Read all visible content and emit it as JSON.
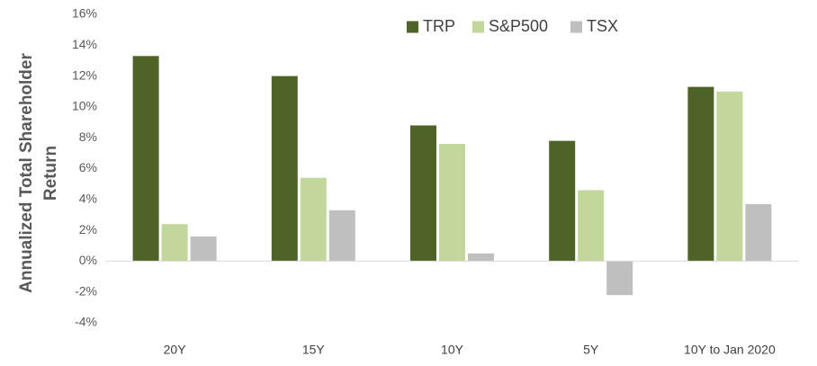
{
  "chart_data": {
    "type": "bar",
    "title": "",
    "ylabel": [
      "Annualized Total Shareholder",
      "Return"
    ],
    "xlabel": "",
    "categories": [
      "20Y",
      "15Y",
      "10Y",
      "5Y",
      "10Y to Jan 2020"
    ],
    "series": [
      {
        "name": "TRP",
        "color": "#4f6228",
        "values": [
          13.3,
          12.0,
          8.8,
          7.8,
          11.3
        ]
      },
      {
        "name": "S&P500",
        "color": "#c3d69b",
        "values": [
          2.4,
          5.4,
          7.6,
          4.6,
          11.0
        ]
      },
      {
        "name": "TSX",
        "color": "#bfbfbf",
        "values": [
          1.6,
          3.3,
          0.5,
          -2.2,
          3.7
        ]
      }
    ],
    "ylim": [
      -4,
      16
    ],
    "yticks": [
      -4,
      -2,
      0,
      2,
      4,
      6,
      8,
      10,
      12,
      14,
      16
    ],
    "ytick_format": "percent",
    "grid": false,
    "legend_position": "top-center"
  }
}
